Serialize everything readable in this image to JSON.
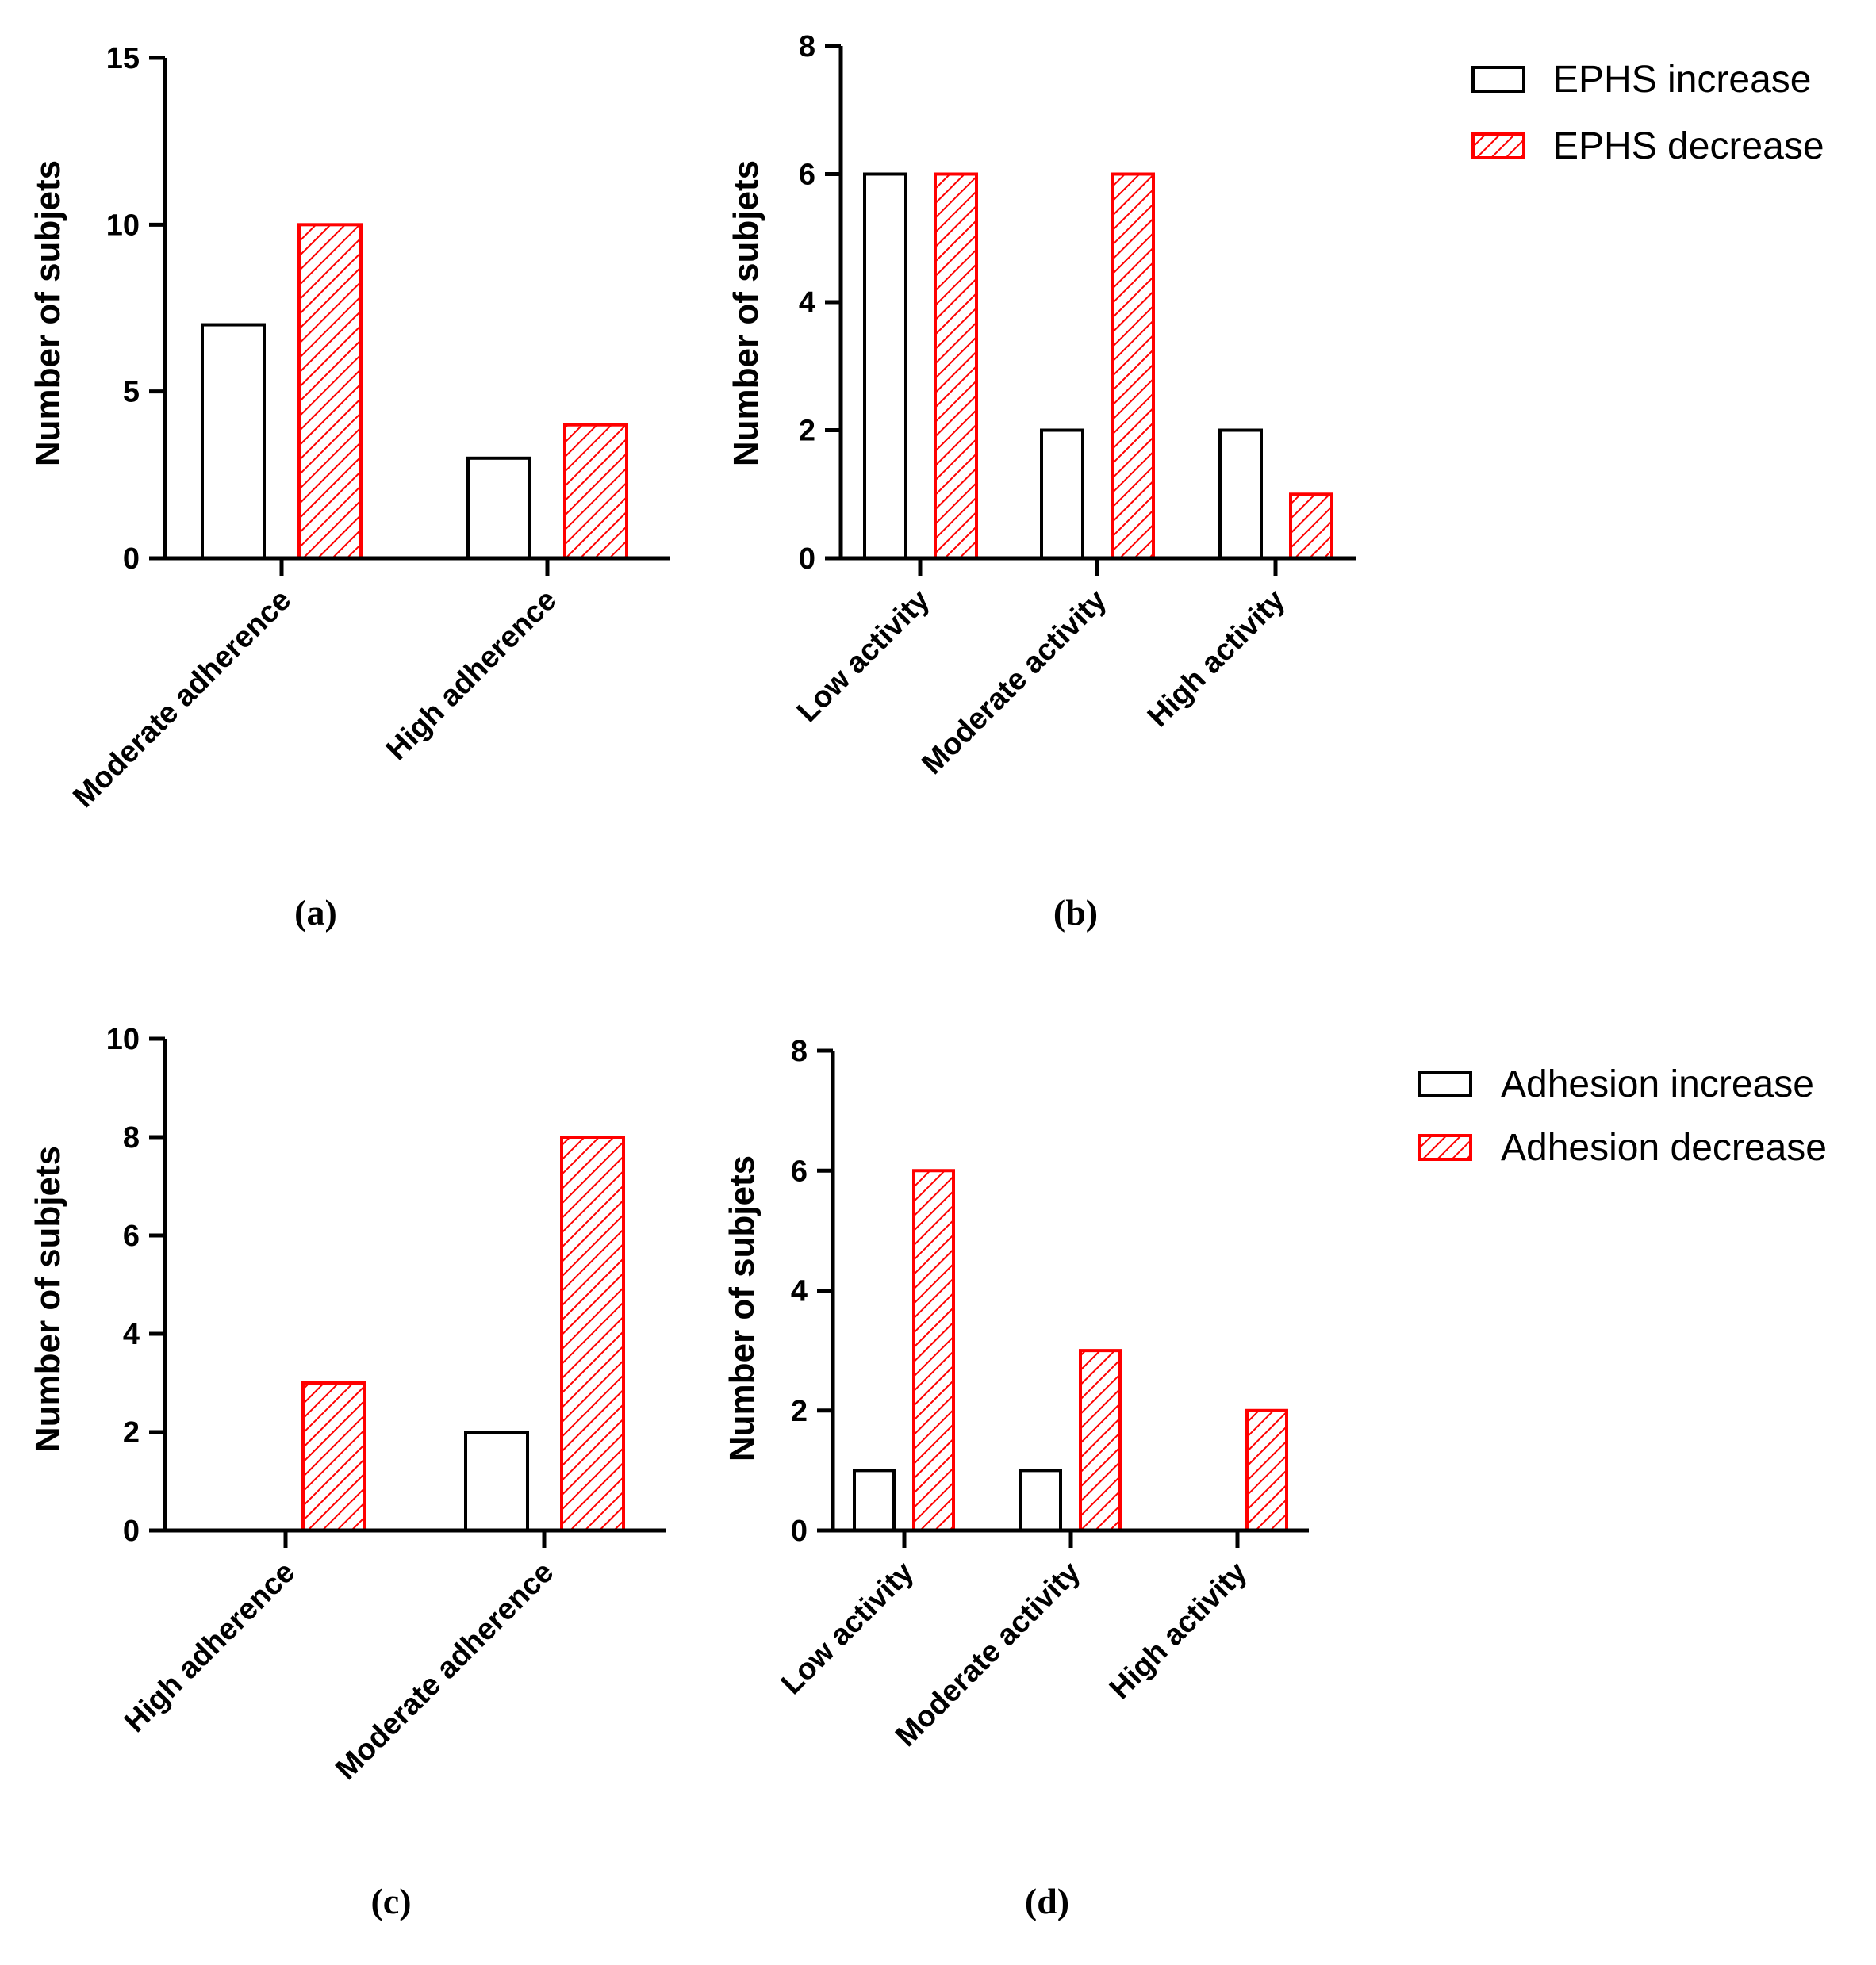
{
  "colors": {
    "increase": "#000000",
    "decrease": "#ff0000",
    "background": "#ffffff"
  },
  "legends": [
    {
      "items": [
        {
          "label": "EPHS increase",
          "style": "increase"
        },
        {
          "label": "EPHS decrease",
          "style": "decrease"
        }
      ]
    },
    {
      "items": [
        {
          "label": "Adhesion increase",
          "style": "increase"
        },
        {
          "label": "Adhesion decrease",
          "style": "decrease"
        }
      ]
    }
  ],
  "chart_data": [
    {
      "type": "bar",
      "panel_label": "(a)",
      "ylabel": "Number of subjets",
      "categories": [
        "Moderate adherence",
        "High adherence"
      ],
      "series": [
        {
          "name": "EPHS increase",
          "values": [
            7,
            3
          ]
        },
        {
          "name": "EPHS decrease",
          "values": [
            10,
            4
          ]
        }
      ],
      "ylim": [
        0,
        15
      ],
      "yticks": [
        0,
        5,
        10,
        15
      ]
    },
    {
      "type": "bar",
      "panel_label": "(b)",
      "ylabel": "Number of subjets",
      "categories": [
        "Low activity",
        "Moderate activity",
        "High activity"
      ],
      "series": [
        {
          "name": "EPHS increase",
          "values": [
            6,
            2,
            2
          ]
        },
        {
          "name": "EPHS decrease",
          "values": [
            6,
            6,
            1
          ]
        }
      ],
      "ylim": [
        0,
        8
      ],
      "yticks": [
        0,
        2,
        4,
        6,
        8
      ]
    },
    {
      "type": "bar",
      "panel_label": "(c)",
      "ylabel": "Number of subjets",
      "categories": [
        "High adherence",
        "Moderate adherence"
      ],
      "series": [
        {
          "name": "Adhesion increase",
          "values": [
            0,
            2
          ]
        },
        {
          "name": "Adhesion decrease",
          "values": [
            3,
            8
          ]
        }
      ],
      "ylim": [
        0,
        10
      ],
      "yticks": [
        0,
        2,
        4,
        6,
        8,
        10
      ]
    },
    {
      "type": "bar",
      "panel_label": "(d)",
      "ylabel": "Number of subjets",
      "categories": [
        "Low activity",
        "Moderate activity",
        "High activity"
      ],
      "series": [
        {
          "name": "Adhesion increase",
          "values": [
            1,
            1,
            0
          ]
        },
        {
          "name": "Adhesion decrease",
          "values": [
            6,
            3,
            2
          ]
        }
      ],
      "ylim": [
        0,
        8
      ],
      "yticks": [
        0,
        2,
        4,
        6,
        8
      ]
    }
  ]
}
